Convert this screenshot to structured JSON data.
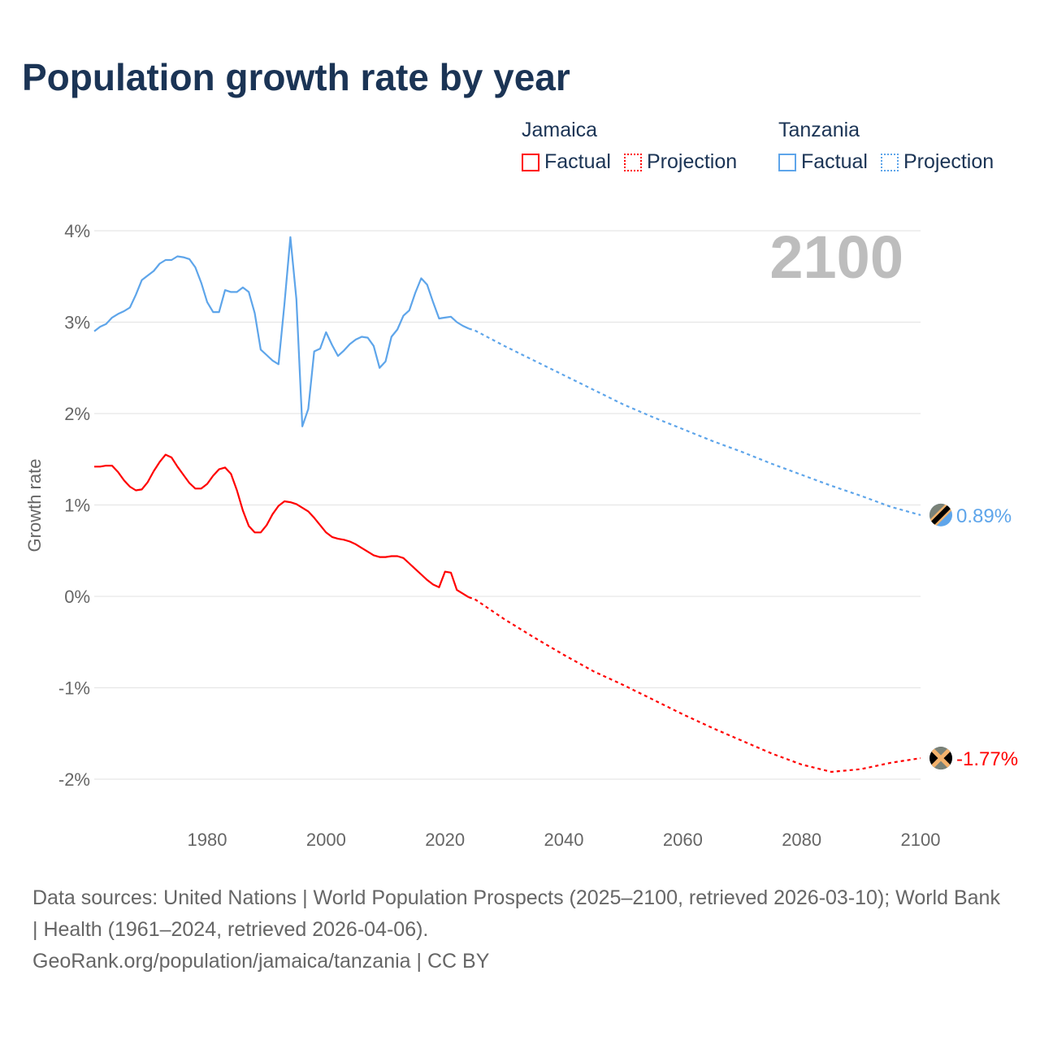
{
  "title": "Population growth rate by year",
  "legend": {
    "groups": [
      {
        "name": "Jamaica",
        "color": "#ff0000",
        "items": [
          "Factual",
          "Projection"
        ]
      },
      {
        "name": "Tanzania",
        "color": "#5ea5ea",
        "items": [
          "Factual",
          "Projection"
        ]
      }
    ]
  },
  "year_overlay": "2100",
  "footer": {
    "sources": "Data sources: United Nations | World Population Prospects (2025–2100, retrieved 2026-03-10); World Bank | Health (1961–2024, retrieved 2026-04-06).",
    "credit": "GeoRank.org/population/jamaica/tanzania | CC BY"
  },
  "chart_data": {
    "type": "line",
    "title": "Population growth rate by year",
    "xlabel": "",
    "ylabel": "Growth rate",
    "xlim": [
      1961,
      2100
    ],
    "ylim": [
      -2.5,
      4.1
    ],
    "x_ticks": [
      1980,
      2000,
      2020,
      2040,
      2060,
      2080,
      2100
    ],
    "y_ticks": [
      -2,
      -1,
      0,
      1,
      2,
      3,
      4
    ],
    "y_tick_labels": [
      "-2%",
      "-1%",
      "0%",
      "1%",
      "2%",
      "3%",
      "4%"
    ],
    "grid": true,
    "legend_position": "top-right",
    "series": [
      {
        "name": "Tanzania",
        "color": "#5ea5ea",
        "end_label": "0.89%",
        "factual": {
          "x": [
            1961,
            1962,
            1963,
            1964,
            1965,
            1966,
            1967,
            1968,
            1969,
            1970,
            1971,
            1972,
            1973,
            1974,
            1975,
            1976,
            1977,
            1978,
            1979,
            1980,
            1981,
            1982,
            1983,
            1984,
            1985,
            1986,
            1987,
            1988,
            1989,
            1990,
            1991,
            1992,
            1993,
            1994,
            1995,
            1996,
            1997,
            1998,
            1999,
            2000,
            2001,
            2002,
            2003,
            2004,
            2005,
            2006,
            2007,
            2008,
            2009,
            2010,
            2011,
            2012,
            2013,
            2014,
            2015,
            2016,
            2017,
            2018,
            2019,
            2020,
            2021,
            2022,
            2023,
            2024
          ],
          "y": [
            2.9,
            2.95,
            2.98,
            3.05,
            3.09,
            3.12,
            3.16,
            3.3,
            3.46,
            3.51,
            3.56,
            3.64,
            3.68,
            3.68,
            3.72,
            3.71,
            3.69,
            3.6,
            3.43,
            3.22,
            3.11,
            3.11,
            3.35,
            3.33,
            3.33,
            3.38,
            3.33,
            3.1,
            2.7,
            2.64,
            2.58,
            2.54,
            3.2,
            3.93,
            3.25,
            1.86,
            2.05,
            2.68,
            2.71,
            2.89,
            2.75,
            2.63,
            2.69,
            2.76,
            2.81,
            2.84,
            2.83,
            2.74,
            2.5,
            2.57,
            2.84,
            2.92,
            3.07,
            3.13,
            3.32,
            3.48,
            3.41,
            3.22,
            3.04,
            3.05,
            3.06,
            3.0,
            2.96,
            2.93
          ]
        },
        "projection": {
          "x": [
            2024,
            2025,
            2030,
            2035,
            2040,
            2045,
            2050,
            2055,
            2060,
            2065,
            2070,
            2075,
            2080,
            2085,
            2090,
            2095,
            2100
          ],
          "y": [
            2.93,
            2.91,
            2.74,
            2.58,
            2.42,
            2.26,
            2.1,
            1.96,
            1.83,
            1.7,
            1.58,
            1.45,
            1.33,
            1.21,
            1.1,
            0.98,
            0.89
          ]
        }
      },
      {
        "name": "Jamaica",
        "color": "#ff0000",
        "end_label": "-1.77%",
        "factual": {
          "x": [
            1961,
            1962,
            1963,
            1964,
            1965,
            1966,
            1967,
            1968,
            1969,
            1970,
            1971,
            1972,
            1973,
            1974,
            1975,
            1976,
            1977,
            1978,
            1979,
            1980,
            1981,
            1982,
            1983,
            1984,
            1985,
            1986,
            1987,
            1988,
            1989,
            1990,
            1991,
            1992,
            1993,
            1994,
            1995,
            1996,
            1997,
            1998,
            1999,
            2000,
            2001,
            2002,
            2003,
            2004,
            2005,
            2006,
            2007,
            2008,
            2009,
            2010,
            2011,
            2012,
            2013,
            2014,
            2015,
            2016,
            2017,
            2018,
            2019,
            2020,
            2021,
            2022,
            2023,
            2024
          ],
          "y": [
            1.42,
            1.42,
            1.43,
            1.43,
            1.36,
            1.27,
            1.2,
            1.16,
            1.17,
            1.25,
            1.37,
            1.47,
            1.55,
            1.52,
            1.42,
            1.33,
            1.24,
            1.18,
            1.18,
            1.23,
            1.32,
            1.39,
            1.41,
            1.34,
            1.16,
            0.94,
            0.77,
            0.7,
            0.7,
            0.78,
            0.9,
            0.99,
            1.04,
            1.03,
            1.01,
            0.97,
            0.93,
            0.86,
            0.78,
            0.7,
            0.65,
            0.63,
            0.62,
            0.6,
            0.57,
            0.53,
            0.49,
            0.45,
            0.43,
            0.43,
            0.44,
            0.44,
            0.42,
            0.36,
            0.3,
            0.24,
            0.18,
            0.13,
            0.1,
            0.27,
            0.26,
            0.07,
            0.03,
            -0.01
          ]
        },
        "projection": {
          "x": [
            2024,
            2025,
            2030,
            2035,
            2040,
            2045,
            2050,
            2055,
            2060,
            2065,
            2070,
            2075,
            2080,
            2085,
            2090,
            2095,
            2100
          ],
          "y": [
            -0.01,
            -0.03,
            -0.25,
            -0.45,
            -0.64,
            -0.82,
            -0.97,
            -1.13,
            -1.29,
            -1.44,
            -1.58,
            -1.72,
            -1.84,
            -1.92,
            -1.89,
            -1.82,
            -1.77
          ]
        }
      }
    ]
  }
}
